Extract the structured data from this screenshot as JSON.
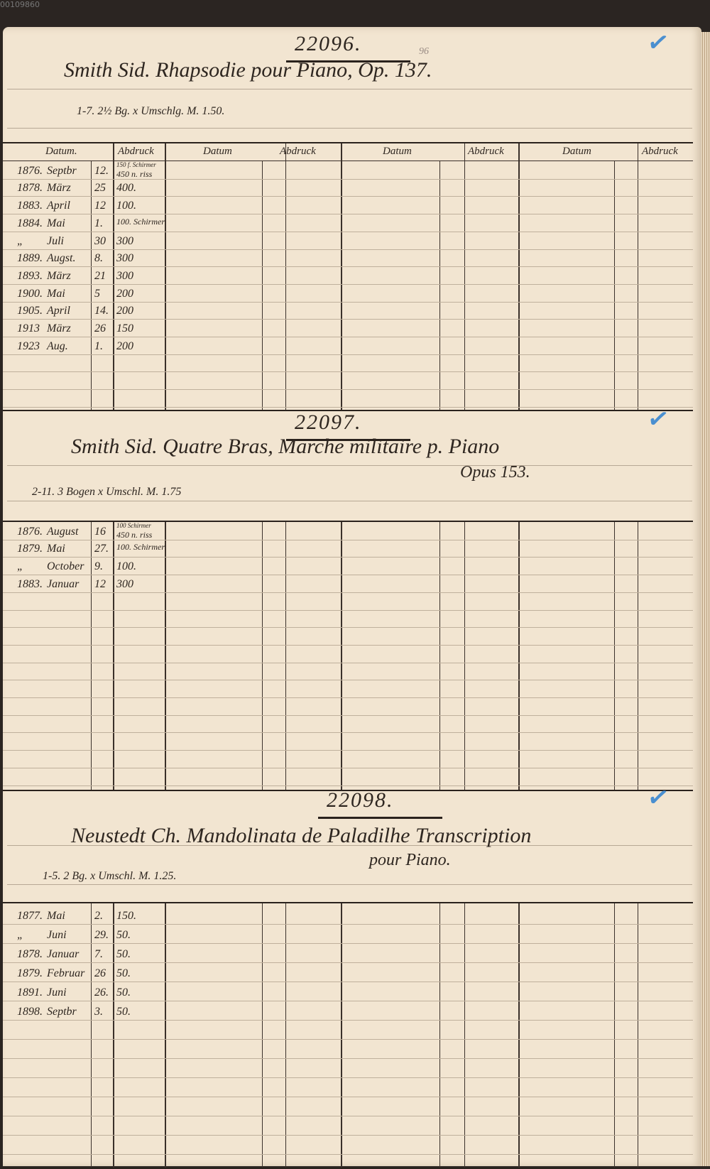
{
  "corner_label": "00109860",
  "colors": {
    "ink": "#2e2620",
    "paper": "#f2e5d1",
    "check_mark": "#4a8fd0"
  },
  "headers": {
    "datum_first": "Datum.",
    "abdruck": "Abdruck",
    "datum": "Datum"
  },
  "sections": [
    {
      "number": "22096.",
      "pencil_note": "96",
      "check": "✓",
      "title": "Smith Sid. Rhapsodie pour Piano, Op. 137.",
      "title_line2": "",
      "subtitle": "1-7. 2½ Bg. x Umschlg. M. 1.50.",
      "entries": [
        {
          "year": "1876.",
          "month": "Septbr",
          "day": "12.",
          "copies": "450 n. riss",
          "note": "150 f. Schirmer"
        },
        {
          "year": "1878.",
          "month": "März",
          "day": "25",
          "copies": "400.",
          "note": ""
        },
        {
          "year": "1883.",
          "month": "April",
          "day": "12",
          "copies": "100.",
          "note": ""
        },
        {
          "year": "1884.",
          "month": "Mai",
          "day": "1.",
          "copies": "100. Schirmer",
          "note": ""
        },
        {
          "year": "„",
          "month": "Juli",
          "day": "30",
          "copies": "300",
          "note": ""
        },
        {
          "year": "1889.",
          "month": "Augst.",
          "day": "8.",
          "copies": "300",
          "note": ""
        },
        {
          "year": "1893.",
          "month": "März",
          "day": "21",
          "copies": "300",
          "note": ""
        },
        {
          "year": "1900.",
          "month": "Mai",
          "day": "5",
          "copies": "200",
          "note": ""
        },
        {
          "year": "1905.",
          "month": "April",
          "day": "14.",
          "copies": "200",
          "note": ""
        },
        {
          "year": "1913",
          "month": "März",
          "day": "26",
          "copies": "150",
          "note": ""
        },
        {
          "year": "1923",
          "month": "Aug.",
          "day": "1.",
          "copies": "200",
          "note": ""
        }
      ]
    },
    {
      "number": "22097.",
      "pencil_note": "",
      "check": "✓",
      "title": "Smith Sid. Quatre Bras, Marche militaire p. Piano",
      "title_line2": "Opus 153.",
      "subtitle": "2-11. 3 Bogen x Umschl. M. 1.75",
      "entries": [
        {
          "year": "1876.",
          "month": "August",
          "day": "16",
          "copies": "450 n. riss",
          "note": "100 Schirmer"
        },
        {
          "year": "1879.",
          "month": "Mai",
          "day": "27.",
          "copies": "100. Schirmer",
          "note": ""
        },
        {
          "year": "„",
          "month": "October",
          "day": "9.",
          "copies": "100.",
          "note": ""
        },
        {
          "year": "1883.",
          "month": "Januar",
          "day": "12",
          "copies": "300",
          "note": ""
        }
      ]
    },
    {
      "number": "22098.",
      "pencil_note": "",
      "check": "✓",
      "title": "Neustedt Ch. Mandolinata de Paladilhe Transcription",
      "title_line2": "pour Piano.",
      "subtitle": "1-5. 2 Bg. x Umschl. M. 1.25.",
      "entries": [
        {
          "year": "1877.",
          "month": "Mai",
          "day": "2.",
          "copies": "150.",
          "note": ""
        },
        {
          "year": "„",
          "month": "Juni",
          "day": "29.",
          "copies": "50.",
          "note": ""
        },
        {
          "year": "1878.",
          "month": "Januar",
          "day": "7.",
          "copies": "50.",
          "note": ""
        },
        {
          "year": "1879.",
          "month": "Februar",
          "day": "26",
          "copies": "50.",
          "note": ""
        },
        {
          "year": "1891.",
          "month": "Juni",
          "day": "26.",
          "copies": "50.",
          "note": ""
        },
        {
          "year": "1898.",
          "month": "Septbr",
          "day": "3.",
          "copies": "50.",
          "note": ""
        }
      ]
    }
  ]
}
